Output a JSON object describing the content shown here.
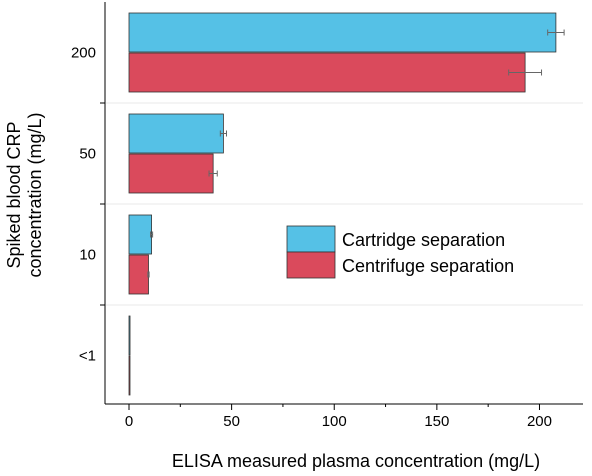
{
  "chart_data": {
    "type": "bar",
    "orientation": "horizontal",
    "categories": [
      "200",
      "50",
      "10",
      "<1"
    ],
    "series": [
      {
        "name": "Cartridge separation",
        "color": "#55c1e6",
        "values": [
          208,
          46,
          11,
          0.5
        ],
        "errors": [
          4,
          1.5,
          0.5,
          0.1
        ]
      },
      {
        "name": "Centrifuge separation",
        "color": "#da4a5c",
        "values": [
          193,
          41,
          9.5,
          0.3
        ],
        "errors": [
          8,
          2,
          0.3,
          0.1
        ]
      }
    ],
    "xlabel": "ELISA measured plasma concentration (mg/L)",
    "ylabel_lines": [
      "Spiked blood CRP",
      "concentration (mg/L)"
    ],
    "xlim": [
      0,
      218
    ],
    "xticks": [
      0,
      50,
      100,
      150,
      200
    ],
    "legend_position": "center-right",
    "grid": false
  }
}
